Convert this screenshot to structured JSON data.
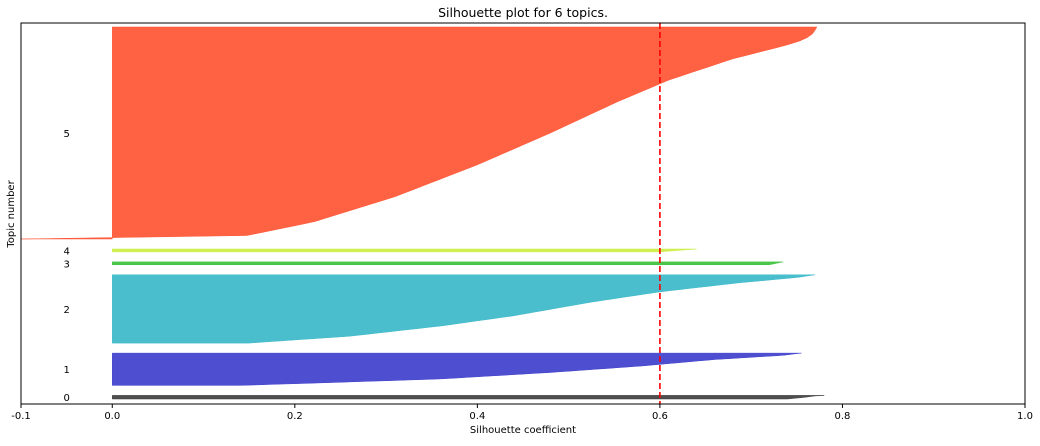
{
  "chart_data": {
    "type": "area",
    "title": "Silhouette plot for 6 topics.",
    "xlabel": "Silhouette coefficient",
    "ylabel": "Topic number",
    "xlim": [
      -0.1,
      1.0
    ],
    "xticks": [
      "-0.1",
      "0.0",
      "0.2",
      "0.4",
      "0.6",
      "0.8",
      "1.0"
    ],
    "yticks_visible": false,
    "grid": false,
    "reference_line": {
      "x": 0.6,
      "color": "#ff0000",
      "style": "dashed"
    },
    "series": [
      {
        "name": "0",
        "label_position": "left",
        "color": "#3f3f3f",
        "sample_count": 10,
        "profile": [
          [
            0,
            0.74
          ],
          [
            0.5,
            0.76
          ],
          [
            0.85,
            0.77
          ],
          [
            1,
            0.78
          ]
        ]
      },
      {
        "name": "1",
        "label_position": "left",
        "color": "#3f3fcc",
        "sample_count": 90,
        "profile": [
          [
            0,
            0.14
          ],
          [
            0.08,
            0.23
          ],
          [
            0.2,
            0.36
          ],
          [
            0.4,
            0.48
          ],
          [
            0.6,
            0.58
          ],
          [
            0.8,
            0.66
          ],
          [
            0.93,
            0.735
          ],
          [
            1,
            0.755
          ]
        ]
      },
      {
        "name": "2",
        "label_position": "left",
        "color": "#3bb9c9",
        "sample_count": 190,
        "profile": [
          [
            0,
            0.15
          ],
          [
            0.1,
            0.26
          ],
          [
            0.25,
            0.36
          ],
          [
            0.4,
            0.44
          ],
          [
            0.6,
            0.525
          ],
          [
            0.75,
            0.6
          ],
          [
            0.88,
            0.685
          ],
          [
            0.96,
            0.75
          ],
          [
            1,
            0.77
          ]
        ]
      },
      {
        "name": "3",
        "label_position": "left",
        "color": "#3cc13c",
        "sample_count": 8,
        "profile": [
          [
            0,
            0.72
          ],
          [
            1,
            0.735
          ]
        ]
      },
      {
        "name": "4",
        "label_position": "left",
        "color": "#ccee44",
        "sample_count": 8,
        "profile": [
          [
            0,
            0.6
          ],
          [
            1,
            0.64
          ]
        ]
      },
      {
        "name": "5",
        "label_position": "left",
        "color": "#ff5533",
        "sample_count": 590,
        "profile": [
          [
            0,
            -0.1
          ],
          [
            0.004,
            -0.09
          ],
          [
            0.01,
            0.14
          ],
          [
            0.08,
            0.22
          ],
          [
            0.2,
            0.31
          ],
          [
            0.35,
            0.4
          ],
          [
            0.5,
            0.48
          ],
          [
            0.65,
            0.555
          ],
          [
            0.75,
            0.61
          ],
          [
            0.85,
            0.68
          ],
          [
            0.91,
            0.735
          ],
          [
            0.94,
            0.758
          ],
          [
            0.97,
            0.768
          ],
          [
            1,
            0.772
          ]
        ]
      }
    ]
  }
}
